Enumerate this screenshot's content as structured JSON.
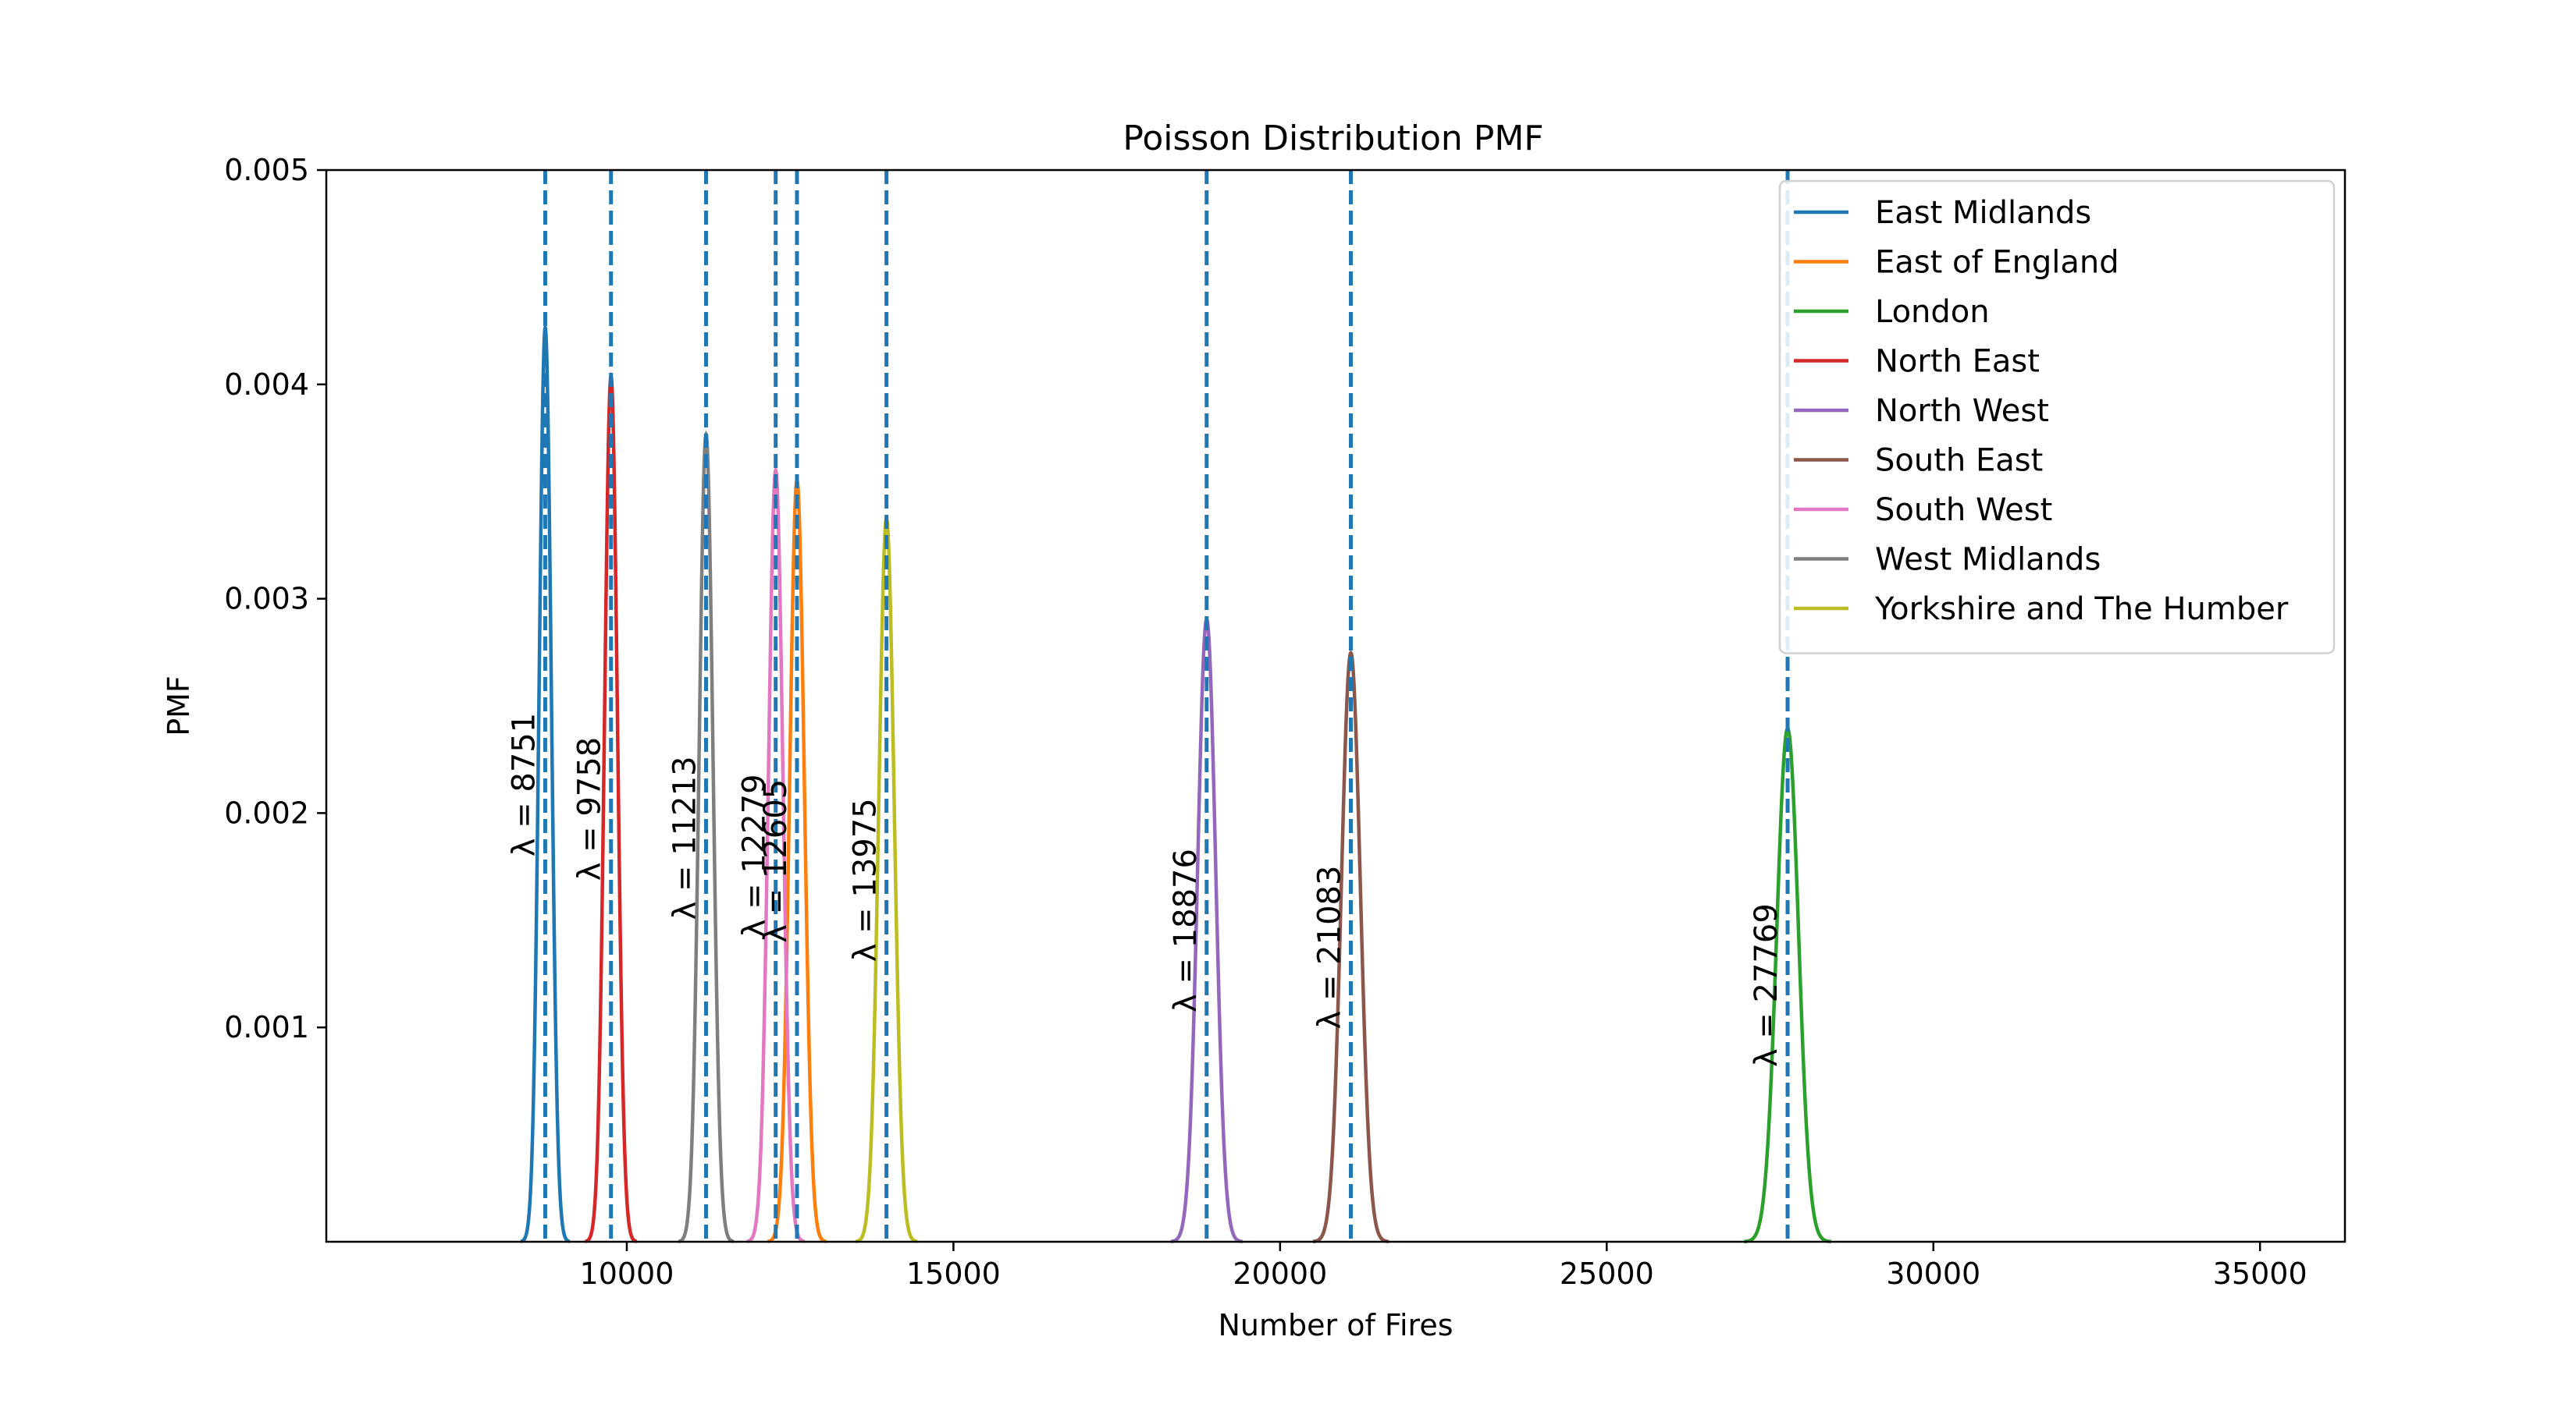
{
  "chart_data": {
    "type": "line",
    "title": "Poisson Distribution PMF",
    "xlabel": "Number of Fires",
    "ylabel": "PMF",
    "xlim": [
      5400,
      36300
    ],
    "ylim": [
      0,
      0.005
    ],
    "x_ticks": [
      10000,
      15000,
      20000,
      25000,
      30000,
      35000
    ],
    "x_tick_labels": [
      "10000",
      "15000",
      "20000",
      "25000",
      "30000",
      "35000"
    ],
    "y_ticks": [
      0.001,
      0.002,
      0.003,
      0.004,
      0.005
    ],
    "y_tick_labels": [
      "0.001",
      "0.002",
      "0.003",
      "0.004",
      "0.005"
    ],
    "grid": false,
    "legend_position": "top-right",
    "mean_line_color": "#1f77b4",
    "series": [
      {
        "name": "East Midlands",
        "lambda": 8751,
        "lambda_label": "λ = 8751",
        "color": "#1f77b4"
      },
      {
        "name": "East of England",
        "lambda": 12605,
        "lambda_label": "λ = 12605",
        "color": "#ff7f0e"
      },
      {
        "name": "London",
        "lambda": 27769,
        "lambda_label": "λ = 27769",
        "color": "#2ca02c"
      },
      {
        "name": "North East",
        "lambda": 9758,
        "lambda_label": "λ = 9758",
        "color": "#d62728"
      },
      {
        "name": "North West",
        "lambda": 18876,
        "lambda_label": "λ = 18876",
        "color": "#9467bd"
      },
      {
        "name": "South East",
        "lambda": 21083,
        "lambda_label": "λ = 21083",
        "color": "#8c564b"
      },
      {
        "name": "South West",
        "lambda": 12279,
        "lambda_label": "λ = 12279",
        "color": "#e377c2"
      },
      {
        "name": "West Midlands",
        "lambda": 11213,
        "lambda_label": "λ = 11213",
        "color": "#7f7f7f"
      },
      {
        "name": "Yorkshire and The Humber",
        "lambda": 13975,
        "lambda_label": "λ = 13975",
        "color": "#bcbd22"
      }
    ]
  }
}
